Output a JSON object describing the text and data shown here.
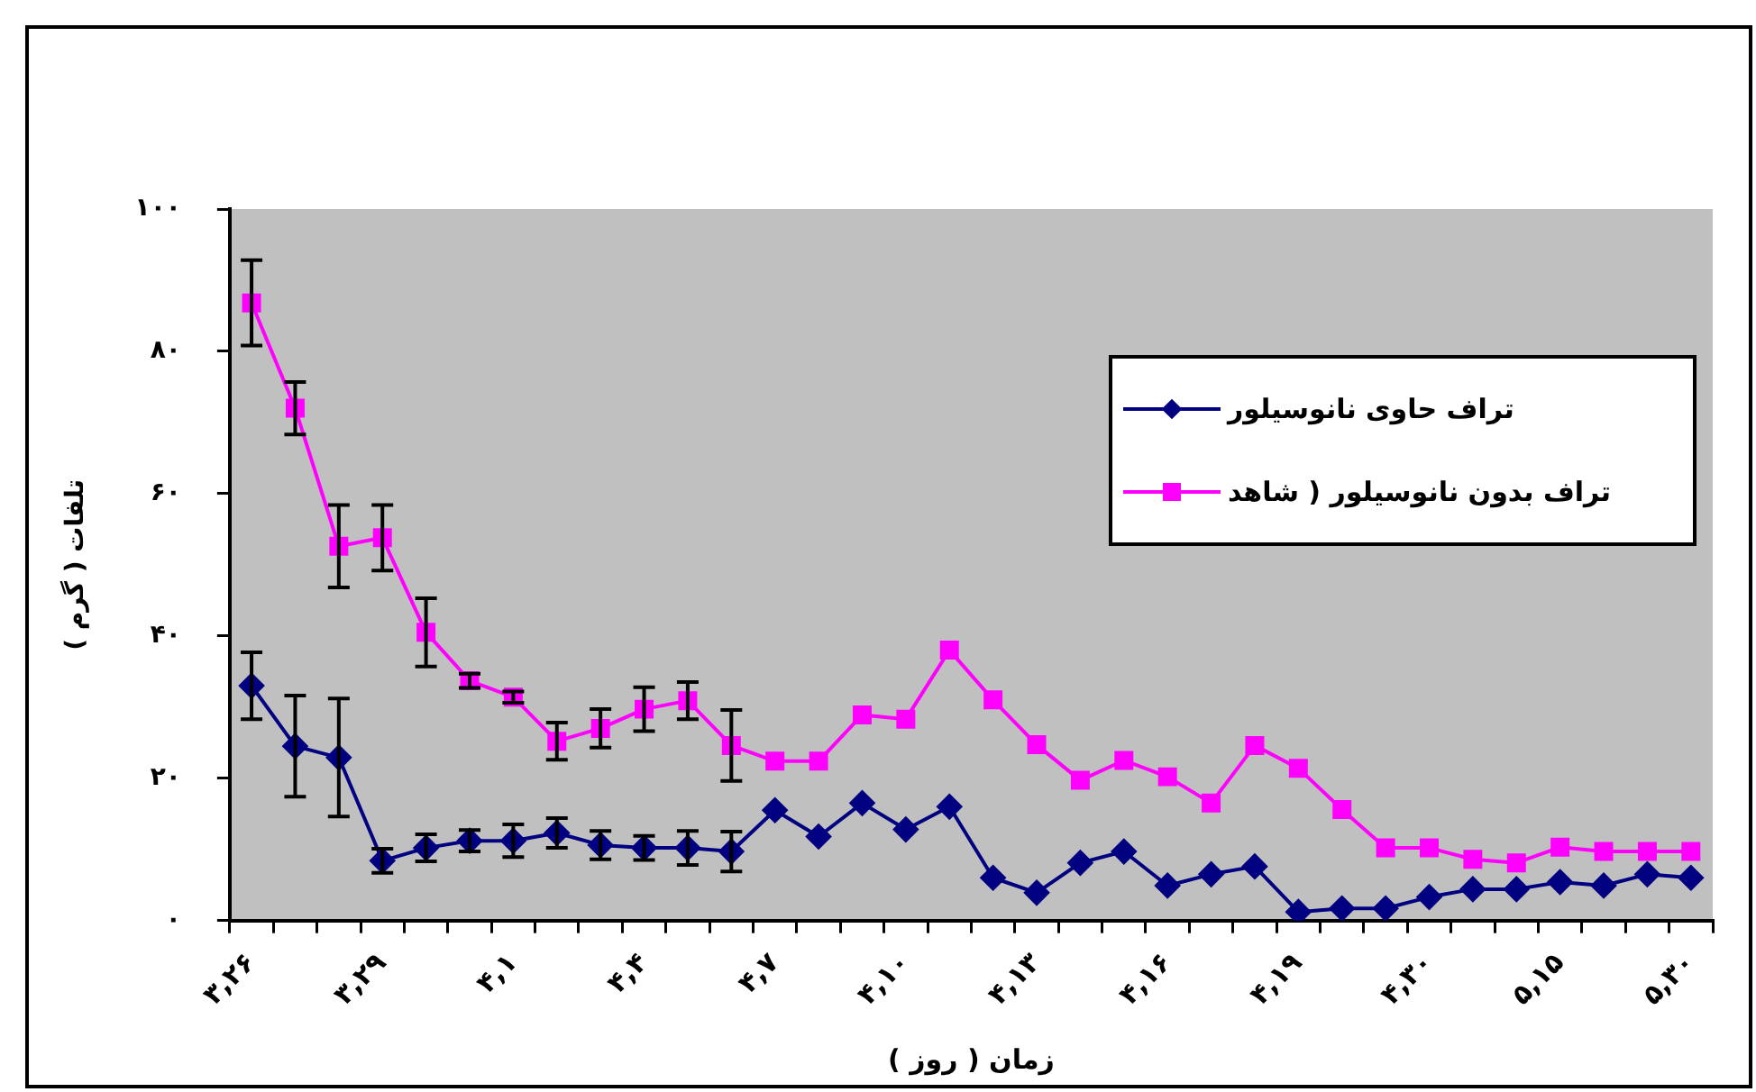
{
  "chart_data": {
    "type": "line",
    "xlabel": "زمان ( روز )",
    "ylabel": "تلفات ( گرم )",
    "categories": [
      "۳,۲۶",
      null,
      null,
      "۳,۲۹",
      null,
      null,
      "۴,۱",
      null,
      null,
      "۴,۴",
      null,
      null,
      "۴,۷",
      null,
      null,
      "۴,۱۰",
      null,
      null,
      "۴,۱۳",
      null,
      null,
      "۴,۱۶",
      null,
      null,
      "۴,۱۹",
      null,
      null,
      "۴,۳۰",
      null,
      null,
      "۵,۱۵",
      null,
      null,
      "۵,۳۰"
    ],
    "series": [
      {
        "name": "تراف حاوی نانوسیلور",
        "color": "#000080",
        "marker": "diamond",
        "values": [
          33.0,
          24.5,
          22.9,
          8.4,
          10.2,
          11.2,
          11.2,
          12.3,
          10.6,
          10.2,
          10.2,
          9.7,
          15.5,
          11.8,
          16.5,
          12.8,
          16.0,
          6.0,
          3.9,
          8.1,
          9.7,
          4.9,
          6.5,
          7.6,
          1.2,
          1.7,
          1.7,
          3.3,
          4.4,
          4.4,
          5.4,
          4.9,
          6.5,
          6.0
        ],
        "errors": [
          4.7,
          7.1,
          8.3,
          1.7,
          1.9,
          1.5,
          2.3,
          2.1,
          2,
          1.7,
          2.4,
          2.8,
          null,
          null,
          null,
          null,
          null,
          null,
          null,
          null,
          null,
          null,
          null,
          null,
          null,
          null,
          null,
          null,
          null,
          null,
          null,
          null,
          null,
          null
        ]
      },
      {
        "name": "تراف بدون نانوسیلور ( شاهد",
        "color": "#ff00ff",
        "marker": "square",
        "values": [
          86.8,
          72.0,
          52.6,
          53.8,
          40.5,
          33.7,
          31.4,
          25.2,
          27.0,
          29.7,
          30.9,
          24.6,
          22.4,
          22.4,
          28.9,
          28.3,
          38.0,
          31.0,
          24.7,
          19.7,
          22.5,
          20.2,
          16.5,
          24.6,
          21.4,
          15.6,
          10.2,
          10.2,
          8.6,
          8.1,
          10.3,
          9.7,
          9.7,
          9.7
        ],
        "errors": [
          6,
          3.7,
          5.8,
          4.6,
          4.8,
          1,
          0.8,
          2.6,
          2.7,
          3.1,
          2.6,
          5,
          null,
          null,
          null,
          null,
          null,
          null,
          null,
          null,
          null,
          null,
          null,
          null,
          null,
          null,
          null,
          null,
          null,
          null,
          null,
          null,
          null,
          null
        ]
      }
    ],
    "ylim": [
      0,
      100
    ],
    "yticks": [
      {
        "value": 0,
        "label": "۰"
      },
      {
        "value": 20,
        "label": "۲۰"
      },
      {
        "value": 40,
        "label": "۴۰"
      },
      {
        "value": 60,
        "label": "۶۰"
      },
      {
        "value": 80,
        "label": "۸۰"
      },
      {
        "value": 100,
        "label": "۱۰۰"
      }
    ],
    "grid": false,
    "legend": "top right",
    "line_style": "solid"
  }
}
